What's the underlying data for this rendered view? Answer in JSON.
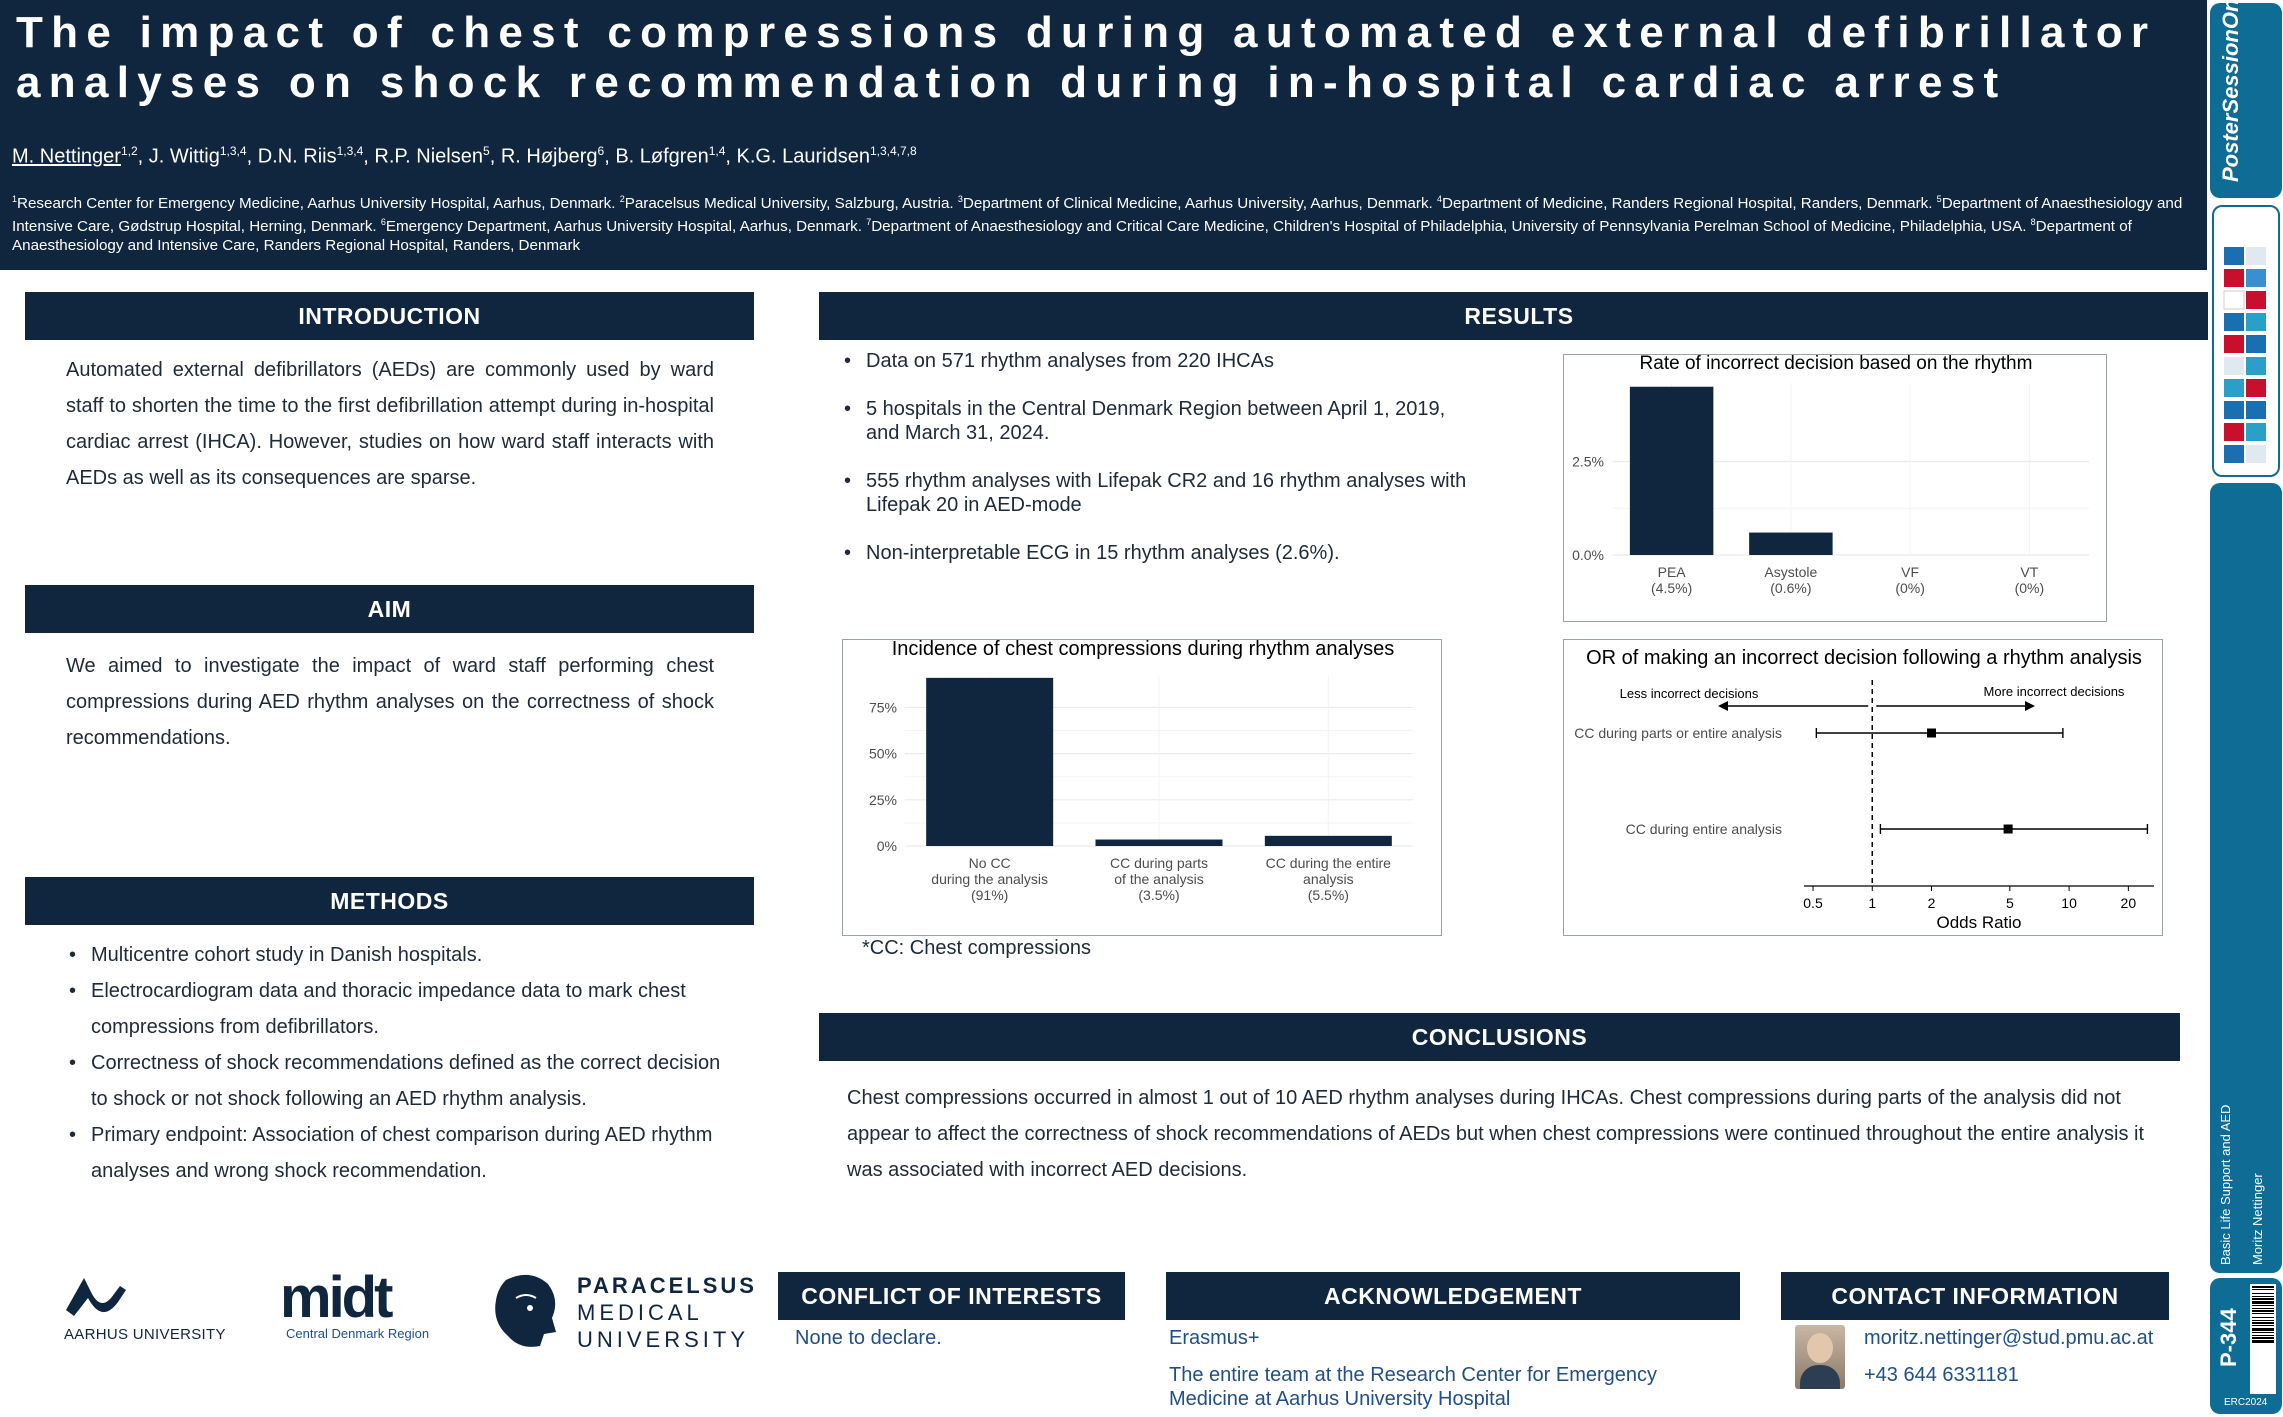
{
  "header": {
    "title": "The impact of chest compressions during automated external defibrillator analyses on shock recommendation during in-hospital cardiac arrest",
    "authors": [
      {
        "name": "M. Nettinger",
        "sup": "1,2"
      },
      {
        "name": "J. Wittig",
        "sup": "1,3,4"
      },
      {
        "name": "D.N. Riis",
        "sup": "1,3,4"
      },
      {
        "name": "R.P. Nielsen",
        "sup": "5"
      },
      {
        "name": "R. Højberg",
        "sup": "6"
      },
      {
        "name": "B. Løfgren",
        "sup": "1,4"
      },
      {
        "name": "K.G. Lauridsen",
        "sup": "1,3,4,7,8"
      }
    ],
    "affiliations": [
      {
        "n": "1",
        "text": "Research Center for Emergency Medicine, Aarhus University Hospital, Aarhus, Denmark."
      },
      {
        "n": "2",
        "text": "Paracelsus Medical University, Salzburg, Austria."
      },
      {
        "n": "3",
        "text": "Department of Clinical Medicine, Aarhus University, Aarhus, Denmark."
      },
      {
        "n": "4",
        "text": "Department of Medicine, Randers Regional Hospital, Randers, Denmark."
      },
      {
        "n": "5",
        "text": "Department of Anaesthesiology and Intensive Care, Gødstrup Hospital, Herning, Denmark."
      },
      {
        "n": "6",
        "text": "Emergency Department, Aarhus University Hospital, Aarhus, Denmark."
      },
      {
        "n": "7",
        "text": "Department of Anaesthesiology and Critical Care Medicine, Children's Hospital of Philadelphia, University of Pennsylvania Perelman School of Medicine, Philadelphia, USA."
      },
      {
        "n": "8",
        "text": "Department of Anaesthesiology and Intensive Care, Randers Regional Hospital, Randers, Denmark"
      }
    ]
  },
  "introduction": {
    "heading": "INTRODUCTION",
    "text": "Automated external defibrillators (AEDs) are commonly used by ward staff to shorten the time to the first defibrillation attempt during in-hospital cardiac arrest (IHCA). However, studies on how ward staff interacts with AEDs as well as its consequences are sparse."
  },
  "aim": {
    "heading": "AIM",
    "text": "We aimed to investigate the impact of ward staff performing chest compressions during AED rhythm analyses on the correctness of shock recommendations."
  },
  "methods": {
    "heading": "METHODS",
    "items": [
      "Multicentre cohort study in Danish hospitals.",
      "Electrocardiogram data and thoracic impedance data to mark chest compressions from defibrillators.",
      "Correctness of shock recommendations defined as the correct decision to shock or not shock following an AED rhythm analysis.",
      "Primary endpoint: Association of chest comparison during AED rhythm analyses and wrong shock recommendation."
    ]
  },
  "results": {
    "heading": "RESULTS",
    "items": [
      "Data on 571 rhythm analyses from 220 IHCAs",
      "5 hospitals in the Central Denmark Region between April 1, 2019, and March 31, 2024.",
      "555 rhythm analyses with Lifepak CR2 and 16 rhythm analyses with Lifepak 20 in AED-mode",
      "Non-interpretable ECG in 15 rhythm analyses (2.6%)."
    ],
    "cc_note": "*CC: Chest compressions"
  },
  "chart_data": [
    {
      "type": "bar",
      "title": "Rate of incorrect decision based on the rhythm",
      "categories": [
        [
          "PEA",
          "(4.5%)"
        ],
        [
          "Asystole",
          "(0.6%)"
        ],
        [
          "VF",
          "(0%)"
        ],
        [
          "VT",
          "(0%)"
        ]
      ],
      "values": [
        4.5,
        0.6,
        0,
        0
      ],
      "ylim": [
        0,
        4.6
      ],
      "yticks": [
        0,
        2.5
      ],
      "ytick_labels": [
        "0.0%",
        "2.5%"
      ],
      "grid": true,
      "color": "#10263f"
    },
    {
      "type": "bar",
      "title": "Incidence of chest compressions during rhythm analyses",
      "categories": [
        [
          "No CC",
          "during the analysis",
          "(91%)"
        ],
        [
          "CC during parts",
          "of the analysis",
          "(3.5%)"
        ],
        [
          "CC during the entire",
          "analysis",
          "(5.5%)"
        ]
      ],
      "values": [
        91,
        3.5,
        5.5
      ],
      "ylim": [
        0,
        92
      ],
      "yticks": [
        0,
        25,
        50,
        75
      ],
      "ytick_labels": [
        "0%",
        "25%",
        "50%",
        "75%"
      ],
      "grid": true,
      "color": "#10263f"
    },
    {
      "type": "forest",
      "title": "OR of making an incorrect decision following a rhythm analysis",
      "xlabel": "Odds Ratio",
      "xscale": "log",
      "xlim": [
        0.45,
        27
      ],
      "xticks": [
        0.5,
        1,
        2,
        5,
        10,
        20
      ],
      "xtick_labels": [
        "0.5",
        "1",
        "2",
        "5",
        "10",
        "20"
      ],
      "reference": 1,
      "left_annotation": "Less incorrect decisions",
      "right_annotation": "More incorrect decisions",
      "rows": [
        {
          "label": "CC during parts or entire analysis",
          "or": 2.0,
          "lo": 0.52,
          "hi": 9.3
        },
        {
          "label": "CC during entire analysis",
          "or": 4.9,
          "lo": 1.1,
          "hi": 25
        }
      ]
    }
  ],
  "conclusions": {
    "heading": "CONCLUSIONS",
    "text": "Chest compressions occurred in almost 1 out of 10 AED rhythm analyses during IHCAs. Chest compressions during parts of the analysis did not appear to affect the correctness of shock recommendations of AEDs but when chest compressions were continued throughout the entire analysis it was associated with incorrect AED decisions."
  },
  "footer": {
    "coi_heading": "CONFLICT OF INTERESTS",
    "coi_text": "None to declare.",
    "ack_heading": "ACKNOWLEDGEMENT",
    "ack_lines": [
      "Erasmus+",
      "The entire team at the Research Center for Emergency Medicine at Aarhus University Hospital"
    ],
    "contact_heading": "CONTACT INFORMATION",
    "email": "moritz.nettinger@stud.pmu.ac.at",
    "phone": "+43 644 6331181"
  },
  "logos": {
    "aarhus": "AARHUS UNIVERSITY",
    "midt": "midt",
    "midt_sub": "Central Denmark Region",
    "pmu": [
      "PARACELSUS",
      "MEDICAL",
      "UNIVERSITY"
    ]
  },
  "sidebar": {
    "brand": "PosterSessionOnline",
    "topic": "Basic Life Support and AED",
    "presenter": "Moritz Nettinger",
    "poster_id": "P-344",
    "event": "ERC2024"
  }
}
